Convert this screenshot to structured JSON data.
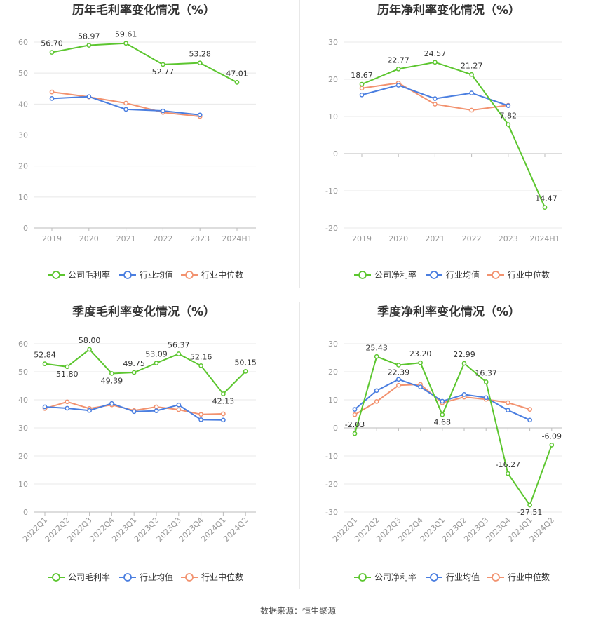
{
  "colors": {
    "company": "#5cc62f",
    "industry_avg": "#4a7ee0",
    "industry_median": "#f2926f",
    "grid": "#e8e8e8",
    "axis": "#bbbbbb"
  },
  "legend": {
    "industry_avg": "行业均值",
    "industry_median": "行业中位数"
  },
  "source": "数据来源：恒生聚源",
  "chart_data": [
    {
      "type": "line",
      "title": "历年毛利率变化情况（%）",
      "categories": [
        "2019",
        "2020",
        "2021",
        "2022",
        "2023",
        "2024H1"
      ],
      "ylim": [
        0,
        60
      ],
      "yticks": [
        0,
        10,
        20,
        30,
        40,
        50,
        60
      ],
      "grid": true,
      "legend_position": "bottom",
      "rotate_x_labels": false,
      "series": [
        {
          "key": "company",
          "name": "公司毛利率",
          "values": [
            56.7,
            58.97,
            59.61,
            52.77,
            53.28,
            47.01
          ],
          "labels": true
        },
        {
          "key": "industry_avg",
          "name": "行业均值",
          "values": [
            41.8,
            42.4,
            38.3,
            37.8,
            36.5,
            null
          ],
          "labels": false
        },
        {
          "key": "industry_median",
          "name": "行业中位数",
          "values": [
            43.9,
            42.3,
            40.3,
            37.3,
            36.0,
            null
          ],
          "labels": false
        }
      ]
    },
    {
      "type": "line",
      "title": "历年净利率变化情况（%）",
      "categories": [
        "2019",
        "2020",
        "2021",
        "2022",
        "2023",
        "2024H1"
      ],
      "ylim": [
        -20,
        30
      ],
      "yticks": [
        -20,
        -10,
        0,
        10,
        20,
        30
      ],
      "grid": true,
      "legend_position": "bottom",
      "rotate_x_labels": false,
      "series": [
        {
          "key": "company",
          "name": "公司净利率",
          "values": [
            18.67,
            22.77,
            24.57,
            21.27,
            7.82,
            -14.47
          ],
          "labels": true
        },
        {
          "key": "industry_avg",
          "name": "行业均值",
          "values": [
            15.8,
            18.4,
            14.8,
            16.3,
            12.9,
            null
          ],
          "labels": false
        },
        {
          "key": "industry_median",
          "name": "行业中位数",
          "values": [
            17.6,
            19.0,
            13.3,
            11.7,
            13.0,
            null
          ],
          "labels": false
        }
      ]
    },
    {
      "type": "line",
      "title": "季度毛利率变化情况（%）",
      "categories": [
        "2022Q1",
        "2022Q2",
        "2022Q3",
        "2022Q4",
        "2023Q1",
        "2023Q2",
        "2023Q3",
        "2023Q4",
        "2024Q1",
        "2024Q2"
      ],
      "ylim": [
        0,
        60
      ],
      "yticks": [
        0,
        10,
        20,
        30,
        40,
        50,
        60
      ],
      "grid": true,
      "legend_position": "bottom",
      "rotate_x_labels": true,
      "series": [
        {
          "key": "company",
          "name": "公司毛利率",
          "values": [
            52.84,
            51.8,
            58.0,
            49.39,
            49.75,
            53.09,
            56.37,
            52.16,
            42.13,
            50.15
          ],
          "labels": true
        },
        {
          "key": "industry_avg",
          "name": "行业均值",
          "values": [
            37.5,
            37.0,
            36.2,
            38.7,
            35.8,
            36.1,
            38.2,
            32.9,
            32.8,
            null
          ],
          "labels": false
        },
        {
          "key": "industry_median",
          "name": "行业中位数",
          "values": [
            36.9,
            39.3,
            36.9,
            38.2,
            36.2,
            37.5,
            36.5,
            34.8,
            35.0,
            null
          ],
          "labels": false
        }
      ]
    },
    {
      "type": "line",
      "title": "季度净利率变化情况（%）",
      "categories": [
        "2022Q1",
        "2022Q2",
        "2022Q3",
        "2022Q4",
        "2023Q1",
        "2023Q2",
        "2023Q3",
        "2023Q4",
        "2024Q1",
        "2024Q2"
      ],
      "ylim": [
        -30,
        30
      ],
      "yticks": [
        -30,
        -20,
        -10,
        0,
        10,
        20,
        30
      ],
      "grid": true,
      "legend_position": "bottom",
      "rotate_x_labels": true,
      "series": [
        {
          "key": "company",
          "name": "公司净利率",
          "values": [
            -2.03,
            25.43,
            22.39,
            23.2,
            4.68,
            22.99,
            16.37,
            -16.27,
            -27.51,
            -6.09
          ],
          "labels": true
        },
        {
          "key": "industry_avg",
          "name": "行业均值",
          "values": [
            6.6,
            13.3,
            17.3,
            14.6,
            9.5,
            11.9,
            10.8,
            6.3,
            2.8,
            null
          ],
          "labels": false
        },
        {
          "key": "industry_median",
          "name": "行业中位数",
          "values": [
            4.7,
            9.4,
            15.2,
            15.5,
            8.9,
            11.0,
            10.2,
            9.0,
            6.6,
            null
          ],
          "labels": false
        }
      ]
    }
  ]
}
